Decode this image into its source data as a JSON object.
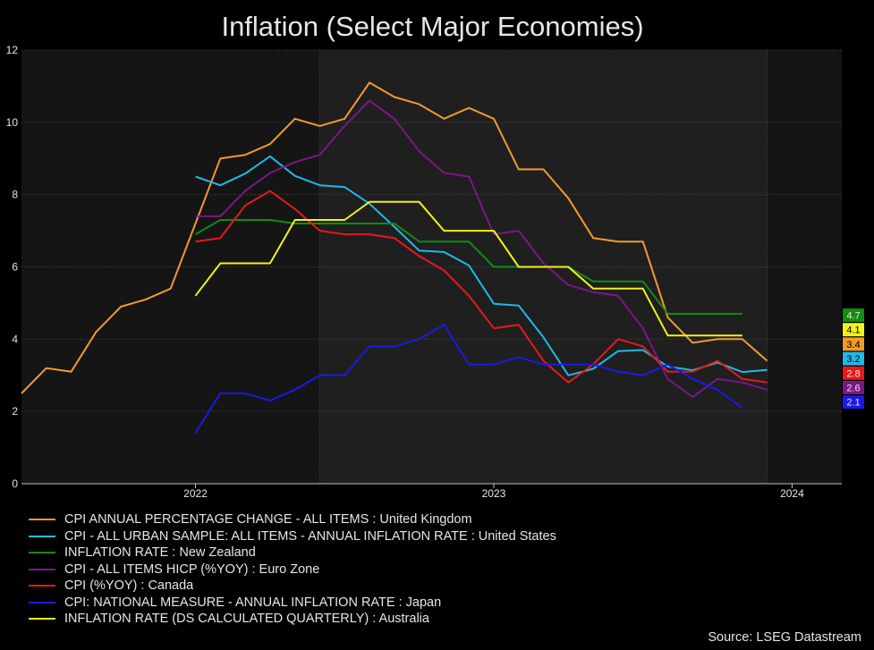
{
  "chart_data": {
    "type": "line",
    "title": "Inflation (Select Major Economies)",
    "source": "Source: LSEG Datastream",
    "ylim": [
      0,
      12
    ],
    "yticks": [
      0,
      2,
      4,
      6,
      8,
      10,
      12
    ],
    "xlim": [
      "2021-06",
      "2024-03"
    ],
    "xticks": [
      {
        "date": "2022-01",
        "label": "2022"
      },
      {
        "date": "2023-01",
        "label": "2023"
      },
      {
        "date": "2024-01",
        "label": "2024"
      }
    ],
    "shaded_regions": [
      [
        "2022-06",
        "2023-12"
      ]
    ],
    "series": [
      {
        "name": "CPI ANNUAL PERCENTAGE CHANGE - ALL ITEMS : United Kingdom",
        "color": "#f29a2e",
        "end_label": "3.4",
        "dates": [
          "2021-06",
          "2021-07",
          "2021-08",
          "2021-09",
          "2021-10",
          "2021-11",
          "2021-12",
          "2022-01",
          "2022-02",
          "2022-03",
          "2022-04",
          "2022-05",
          "2022-06",
          "2022-07",
          "2022-08",
          "2022-09",
          "2022-10",
          "2022-11",
          "2022-12",
          "2023-01",
          "2023-02",
          "2023-03",
          "2023-04",
          "2023-05",
          "2023-06",
          "2023-07",
          "2023-08",
          "2023-09",
          "2023-10",
          "2023-11",
          "2023-12",
          "2024-01",
          "2024-02"
        ],
        "values": [
          2.5,
          3.2,
          3.1,
          4.2,
          4.9,
          5.1,
          5.4,
          7.2,
          9.0,
          9.1,
          9.4,
          10.1,
          9.9,
          10.1,
          11.1,
          10.7,
          10.5,
          10.1,
          10.4,
          10.1,
          8.7,
          8.7,
          7.9,
          6.8,
          6.7,
          6.7,
          4.6,
          3.9,
          4.0,
          4.0,
          3.4,
          null,
          null
        ]
      },
      {
        "name": "CPI - ALL URBAN SAMPLE: ALL ITEMS - ANNUAL INFLATION RATE : United States",
        "color": "#22b8e6",
        "end_label": "3.2",
        "dates": [
          "2022-01",
          "2022-02",
          "2022-03",
          "2022-04",
          "2022-05",
          "2022-06",
          "2022-07",
          "2022-08",
          "2022-09",
          "2022-10",
          "2022-11",
          "2022-12",
          "2023-01",
          "2023-02",
          "2023-03",
          "2023-04",
          "2023-05",
          "2023-06",
          "2023-07",
          "2023-08",
          "2023-09",
          "2023-10",
          "2023-11",
          "2023-12",
          "2024-01",
          "2024-02"
        ],
        "values": [
          8.5,
          8.26,
          8.58,
          9.06,
          8.52,
          8.26,
          8.21,
          7.75,
          7.11,
          6.45,
          6.41,
          6.04,
          4.98,
          4.93,
          4.05,
          3.0,
          3.18,
          3.67,
          3.7,
          3.24,
          3.14,
          3.35,
          3.09,
          3.15,
          null,
          null
        ]
      },
      {
        "name": "INFLATION RATE : New Zealand",
        "color": "#128c12",
        "end_label": "4.7",
        "dates": [
          "2022-01",
          "2022-02",
          "2022-04",
          "2022-05",
          "2022-07",
          "2022-09",
          "2022-10",
          "2022-12",
          "2023-01",
          "2023-04",
          "2023-05",
          "2023-07",
          "2023-08",
          "2023-10",
          "2023-11"
        ],
        "values": [
          6.9,
          7.3,
          7.3,
          7.2,
          7.2,
          7.2,
          6.7,
          6.7,
          6.0,
          6.0,
          5.6,
          5.6,
          4.7,
          4.7,
          4.7
        ]
      },
      {
        "name": "CPI - ALL ITEMS HICP (%YOY) : Euro Zone",
        "color": "#7b1788",
        "end_label": "2.6",
        "dates": [
          "2022-01",
          "2022-02",
          "2022-03",
          "2022-04",
          "2022-05",
          "2022-06",
          "2022-07",
          "2022-08",
          "2022-09",
          "2022-10",
          "2022-11",
          "2022-12",
          "2023-01",
          "2023-02",
          "2023-03",
          "2023-04",
          "2023-05",
          "2023-06",
          "2023-07",
          "2023-08",
          "2023-09",
          "2023-10",
          "2023-11",
          "2023-12"
        ],
        "values": [
          7.4,
          7.4,
          8.1,
          8.6,
          8.9,
          9.1,
          9.9,
          10.6,
          10.1,
          9.2,
          8.6,
          8.5,
          6.9,
          7.0,
          6.1,
          5.5,
          5.3,
          5.2,
          4.3,
          2.9,
          2.4,
          2.9,
          2.8,
          2.6
        ]
      },
      {
        "name": "CPI (%YOY) : Canada",
        "color": "#e61a1a",
        "end_label": "2.8",
        "dates": [
          "2022-01",
          "2022-02",
          "2022-03",
          "2022-04",
          "2022-05",
          "2022-06",
          "2022-07",
          "2022-08",
          "2022-09",
          "2022-10",
          "2022-11",
          "2022-12",
          "2023-01",
          "2023-02",
          "2023-03",
          "2023-04",
          "2023-05",
          "2023-06",
          "2023-07",
          "2023-08",
          "2023-09",
          "2023-10",
          "2023-11",
          "2023-12"
        ],
        "values": [
          6.7,
          6.8,
          7.7,
          8.1,
          7.6,
          7.0,
          6.9,
          6.9,
          6.8,
          6.3,
          5.9,
          5.2,
          4.3,
          4.4,
          3.4,
          2.8,
          3.3,
          4.0,
          3.8,
          3.1,
          3.1,
          3.4,
          2.9,
          2.8
        ]
      },
      {
        "name": "CPI: NATIONAL MEASURE - ANNUAL INFLATION RATE : Japan",
        "color": "#1a1ae6",
        "end_label": "2.1",
        "dates": [
          "2022-01",
          "2022-02",
          "2022-03",
          "2022-04",
          "2022-05",
          "2022-06",
          "2022-07",
          "2022-08",
          "2022-09",
          "2022-10",
          "2022-11",
          "2022-12",
          "2023-01",
          "2023-02",
          "2023-03",
          "2023-04",
          "2023-05",
          "2023-06",
          "2023-07",
          "2023-08",
          "2023-09",
          "2023-10",
          "2023-11",
          "2023-12"
        ],
        "values": [
          1.4,
          2.5,
          2.5,
          2.3,
          2.6,
          3.0,
          3.0,
          3.8,
          3.8,
          4.0,
          4.4,
          3.3,
          3.3,
          3.5,
          3.3,
          3.3,
          3.3,
          3.1,
          3.0,
          3.3,
          2.9,
          2.6,
          2.1,
          null
        ]
      },
      {
        "name": "INFLATION RATE (DS CALCULATED QUARTERLY) : Australia",
        "color": "#f2f21a",
        "end_label": "4.1",
        "dates": [
          "2022-01",
          "2022-02",
          "2022-04",
          "2022-05",
          "2022-07",
          "2022-08",
          "2022-10",
          "2022-11",
          "2023-01",
          "2023-02",
          "2023-04",
          "2023-05",
          "2023-07",
          "2023-08",
          "2023-10",
          "2023-11"
        ],
        "values": [
          5.2,
          6.1,
          6.1,
          7.3,
          7.3,
          7.8,
          7.8,
          7.0,
          7.0,
          6.0,
          6.0,
          5.4,
          5.4,
          4.1,
          4.1,
          4.1
        ]
      }
    ],
    "end_label_order": [
      "4.7",
      "4.1",
      "3.4",
      "3.2",
      "2.8",
      "2.6",
      "2.1"
    ]
  }
}
